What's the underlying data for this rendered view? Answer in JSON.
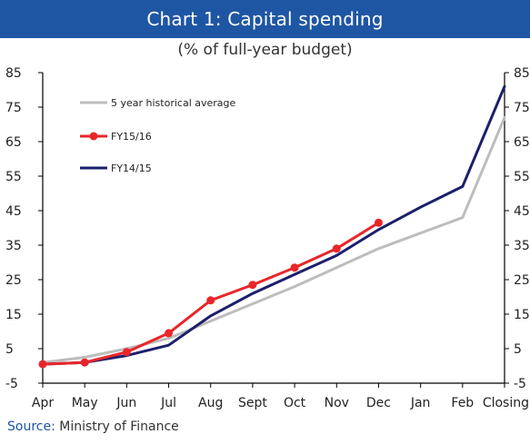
{
  "chart_data": {
    "type": "line",
    "title": "Chart 1: Capital spending",
    "subtitle": "(% of full-year budget)",
    "categories": [
      "Apr",
      "May",
      "Jun",
      "Jul",
      "Aug",
      "Sept",
      "Oct",
      "Nov",
      "Dec",
      "Jan",
      "Feb",
      "Closing"
    ],
    "y_ticks": [
      "85",
      "75",
      "65",
      "55",
      "45",
      "35",
      "25",
      "15",
      "5",
      "-5"
    ],
    "y_ticks_right": [
      "85",
      "75",
      "65",
      "55",
      "45",
      "35",
      "25",
      "15",
      "5",
      "-5"
    ],
    "ylim": [
      -5,
      85
    ],
    "grid": false,
    "legend_position": "top-left",
    "series": [
      {
        "name": "5 year historical average",
        "color": "#bdbdbd",
        "markers": false,
        "values": [
          1,
          2.5,
          5,
          8,
          13,
          18,
          23,
          28.5,
          34,
          38.5,
          43,
          72
        ]
      },
      {
        "name": "FY15/16",
        "color": "#e8262a",
        "markers": true,
        "values": [
          0.5,
          1,
          4,
          9.5,
          19,
          23.5,
          28.5,
          34,
          41.5,
          null,
          null,
          null
        ]
      },
      {
        "name": "FY14/15",
        "color": "#1b1f6b",
        "markers": false,
        "values": [
          0.5,
          1,
          3,
          6,
          14.5,
          21,
          26.5,
          32,
          39.5,
          46,
          52,
          81
        ]
      }
    ]
  },
  "source": {
    "label": "Source:",
    "text": "Ministry of Finance"
  }
}
